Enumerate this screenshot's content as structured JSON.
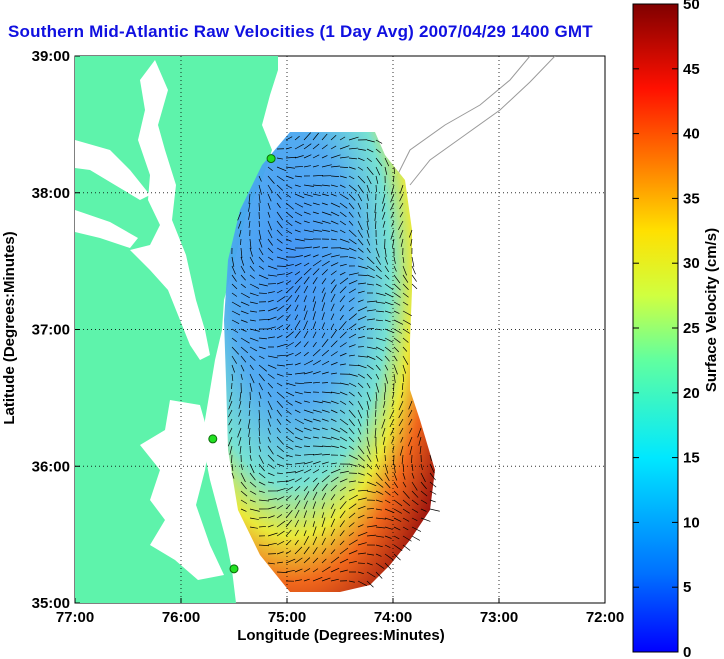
{
  "title": "Southern Mid-Atlantic Raw Velocities (1 Day Avg) 2007/04/29 1400 GMT",
  "map": {
    "x_label": "Longitude (Degrees:Minutes)",
    "y_label": "Latitude (Degrees:Minutes)",
    "x_ticks": [
      "77:00",
      "76:00",
      "75:00",
      "74:00",
      "73:00",
      "72:00"
    ],
    "y_ticks": [
      "39:00",
      "38:00",
      "37:00",
      "36:00",
      "35:00"
    ],
    "x_range": [
      -77,
      -72
    ],
    "y_range": [
      35,
      39
    ],
    "grid": "dotted",
    "land_color": "#5ef3ab",
    "water_color": "#ffffff",
    "station_color": "#22e022",
    "stations": [
      {
        "lon": -75.15,
        "lat": 38.25
      },
      {
        "lon": -75.7,
        "lat": 36.2
      },
      {
        "lon": -75.5,
        "lat": 35.25
      }
    ]
  },
  "colorbar": {
    "label": "Surface Velocity (cm/s)",
    "min": 0,
    "max": 50,
    "ticks": [
      "0",
      "5",
      "10",
      "15",
      "20",
      "25",
      "30",
      "35",
      "40",
      "45",
      "50"
    ],
    "colormap": "jet"
  }
}
